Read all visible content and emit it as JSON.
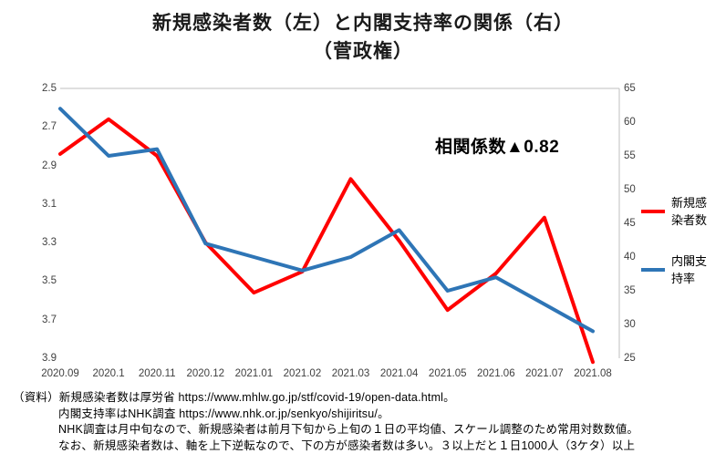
{
  "title": {
    "line1": "新規感染者数（左）と内閣支持率の関係（右）",
    "line2": "（菅政権）"
  },
  "chart_data": {
    "type": "line",
    "title": "新規感染者数（左）と内閣支持率の関係（右）（菅政権）",
    "annotation": "相関係数▲0.82",
    "grid": false,
    "legend_position": "right",
    "categories": [
      "2020.09",
      "2020.1",
      "2020.11",
      "2020.12",
      "2021.01",
      "2021.02",
      "2021.03",
      "2021.04",
      "2021.05",
      "2021.06",
      "2021.07",
      "2021.08"
    ],
    "series": [
      {
        "name": "新規感染者数",
        "axis": "left",
        "color": "#FF0000",
        "values": [
          2.84,
          2.66,
          2.85,
          3.3,
          3.56,
          3.45,
          2.97,
          3.29,
          3.65,
          3.46,
          3.17,
          3.92
        ]
      },
      {
        "name": "内閣支持率",
        "axis": "right",
        "color": "#2E75B6",
        "values": [
          62,
          55,
          56,
          42,
          40,
          38,
          40,
          44,
          35,
          37,
          33,
          29
        ]
      }
    ],
    "axes": {
      "left": {
        "min": 2.5,
        "max": 3.9,
        "inverted": true,
        "ticks": [
          "2.5",
          "2.7",
          "2.9",
          "3.1",
          "3.3",
          "3.5",
          "3.7",
          "3.9"
        ]
      },
      "right": {
        "min": 25,
        "max": 65,
        "ticks": [
          "65",
          "60",
          "55",
          "50",
          "45",
          "40",
          "35",
          "30",
          "25"
        ]
      }
    }
  },
  "footer": {
    "lines": [
      "（資料）新規感染者数は厚労省 https://www.mhlw.go.jp/stf/covid-19/open-data.html。",
      "内閣支持率はNHK調査 https://www.nhk.or.jp/senkyo/shijiritsu/。",
      "NHK調査は月中旬なので、新規感染者は前月下旬から上旬の１日の平均値、スケール調整のため常用対数数値。",
      "なお、新規感染者数は、軸を上下逆転なので、下の方が感染者数は多い。３以上だと１日1000人（3ケタ）以上"
    ]
  }
}
